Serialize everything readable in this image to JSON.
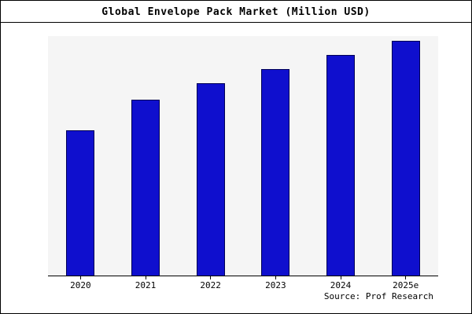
{
  "chart_data": {
    "type": "bar",
    "title": "Global Envelope Pack Market (Million USD)",
    "categories": [
      "2020",
      "2021",
      "2022",
      "2023",
      "2024",
      "2025e"
    ],
    "values": [
      62,
      75,
      82,
      88,
      94,
      100
    ],
    "xlabel": "",
    "ylabel": "",
    "ylim": [
      0,
      102
    ],
    "grid": false,
    "legend": false,
    "bar_color": "#0f0fce",
    "bar_border_color": "#000055",
    "plot_background": "#f5f5f5",
    "canvas_background": "#ffffff"
  },
  "source": "Source: Prof Research"
}
